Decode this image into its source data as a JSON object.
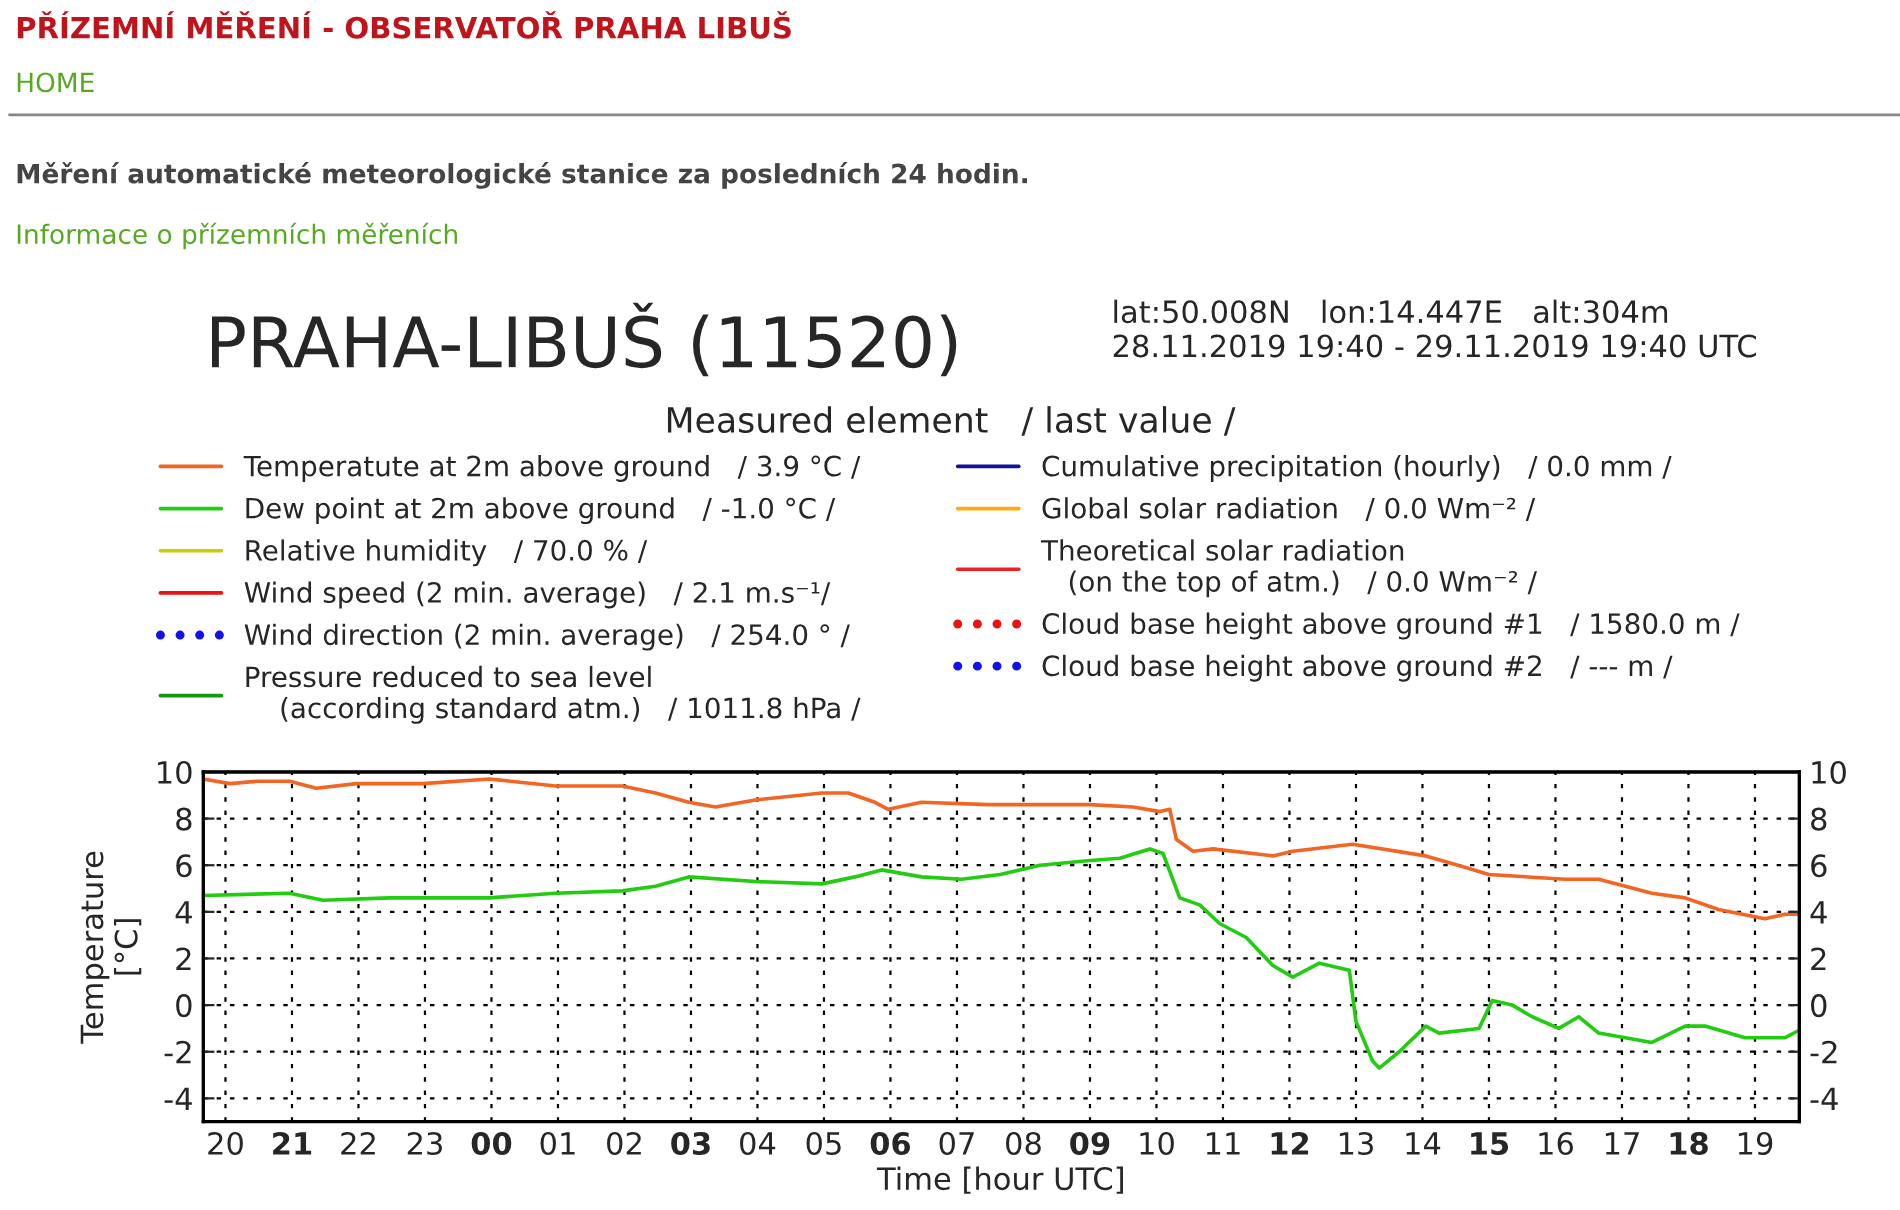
{
  "chart_data": {
    "type": "line",
    "title": "PRAHA-LIBUŠ (11520)",
    "subtitle": "lat:50.008N   lon:14.447E   alt:304m\n28.11.2019 19:40 - 29.11.2019 19:40 UTC",
    "annotations": [
      "PŘÍZEMNÍ MĚŘENÍ - OBSERVATOŘ PRAHA LIBUŠ",
      "HOME",
      "Měření automatické meteorologické stanice za posledních 24 hodin.",
      "Informace o přízemních měřeních"
    ],
    "legend_title": "Measured element   / last value /",
    "xlabel": "Time [hour UTC]",
    "ylabel": "Temperature\n[°C]",
    "xlim": [
      "2019-11-28T19:40",
      "2019-11-29T19:40"
    ],
    "xticks": [
      {
        "value": "2019-11-28T20:00",
        "label": "20"
      },
      {
        "value": "2019-11-28T21:00",
        "label": "21"
      },
      {
        "value": "2019-11-28T22:00",
        "label": "22"
      },
      {
        "value": "2019-11-28T23:00",
        "label": "23"
      },
      {
        "value": "2019-11-29T00:00",
        "label": "00"
      },
      {
        "value": "2019-11-29T01:00",
        "label": "01"
      },
      {
        "value": "2019-11-29T02:00",
        "label": "02"
      },
      {
        "value": "2019-11-29T03:00",
        "label": "03"
      },
      {
        "value": "2019-11-29T04:00",
        "label": "04"
      },
      {
        "value": "2019-11-29T05:00",
        "label": "05"
      },
      {
        "value": "2019-11-29T06:00",
        "label": "06"
      },
      {
        "value": "2019-11-29T07:00",
        "label": "07"
      },
      {
        "value": "2019-11-29T08:00",
        "label": "08"
      },
      {
        "value": "2019-11-29T09:00",
        "label": "09"
      },
      {
        "value": "2019-11-29T10:00",
        "label": "10"
      },
      {
        "value": "2019-11-29T11:00",
        "label": "11"
      },
      {
        "value": "2019-11-29T12:00",
        "label": "12"
      },
      {
        "value": "2019-11-29T13:00",
        "label": "13"
      },
      {
        "value": "2019-11-29T14:00",
        "label": "14"
      },
      {
        "value": "2019-11-29T15:00",
        "label": "15"
      },
      {
        "value": "2019-11-29T16:00",
        "label": "16"
      },
      {
        "value": "2019-11-29T17:00",
        "label": "17"
      },
      {
        "value": "2019-11-29T18:00",
        "label": "18"
      },
      {
        "value": "2019-11-29T19:00",
        "label": "19"
      }
    ],
    "ylim": [
      -5,
      10
    ],
    "yticks": [
      -4,
      -2,
      0,
      2,
      4,
      6,
      8,
      10
    ],
    "y2lim": [
      -5,
      10
    ],
    "y2ticks": [
      -4,
      -2,
      0,
      2,
      4,
      6,
      8,
      10
    ],
    "grid": true,
    "legend": "top",
    "series": [
      {
        "name": "Temperatute at 2m above ground   / 3.9 °C /",
        "color": "#f26522",
        "x": [
          "2019-11-28T19:40",
          "2019-11-28T20:04",
          "2019-11-28T20:28",
          "2019-11-28T20:58",
          "2019-11-28T21:22",
          "2019-11-28T21:58",
          "2019-11-28T22:58",
          "2019-11-28T23:58",
          "2019-11-29T00:58",
          "2019-11-29T01:58",
          "2019-11-29T02:28",
          "2019-11-29T02:58",
          "2019-11-29T03:22",
          "2019-11-29T03:58",
          "2019-11-29T04:58",
          "2019-11-29T05:22",
          "2019-11-29T05:46",
          "2019-11-29T05:58",
          "2019-11-29T06:28",
          "2019-11-29T07:28",
          "2019-11-29T08:04",
          "2019-11-29T09:00",
          "2019-11-29T09:39",
          "2019-11-29T10:03",
          "2019-11-29T10:12",
          "2019-11-29T10:18",
          "2019-11-29T10:33",
          "2019-11-29T10:51",
          "2019-11-29T11:45",
          "2019-11-29T12:03",
          "2019-11-29T12:57",
          "2019-11-29T14:03",
          "2019-11-29T14:39",
          "2019-11-29T15:00",
          "2019-11-29T16:09",
          "2019-11-29T16:39",
          "2019-11-29T17:27",
          "2019-11-29T17:57",
          "2019-11-29T18:27",
          "2019-11-29T19:09",
          "2019-11-29T19:27",
          "2019-11-29T19:39"
        ],
        "values": [
          9.7,
          9.5,
          9.6,
          9.6,
          9.3,
          9.5,
          9.5,
          9.7,
          9.4,
          9.4,
          9.1,
          8.7,
          8.5,
          8.8,
          9.1,
          9.1,
          8.7,
          8.4,
          8.7,
          8.6,
          8.6,
          8.6,
          8.5,
          8.3,
          8.4,
          7.1,
          6.6,
          6.7,
          6.4,
          6.6,
          6.9,
          6.4,
          5.9,
          5.6,
          5.4,
          5.4,
          4.8,
          4.6,
          4.1,
          3.7,
          3.9,
          3.9
        ]
      },
      {
        "name": "Dew point at 2m above ground   / -1.0 °C /",
        "color": "#22cc11",
        "x": [
          "2019-11-28T19:40",
          "2019-11-28T20:58",
          "2019-11-28T21:28",
          "2019-11-28T22:28",
          "2019-11-28T23:58",
          "2019-11-29T00:58",
          "2019-11-29T01:58",
          "2019-11-29T02:28",
          "2019-11-29T02:58",
          "2019-11-29T03:58",
          "2019-11-29T04:58",
          "2019-11-29T05:28",
          "2019-11-29T05:52",
          "2019-11-29T06:28",
          "2019-11-29T07:04",
          "2019-11-29T07:39",
          "2019-11-29T08:15",
          "2019-11-29T09:00",
          "2019-11-29T09:27",
          "2019-11-29T09:54",
          "2019-11-29T10:06",
          "2019-11-29T10:21",
          "2019-11-29T10:39",
          "2019-11-29T10:57",
          "2019-11-29T11:21",
          "2019-11-29T11:45",
          "2019-11-29T12:03",
          "2019-11-29T12:27",
          "2019-11-29T12:54",
          "2019-11-29T13:00",
          "2019-11-29T13:15",
          "2019-11-29T13:21",
          "2019-11-29T13:39",
          "2019-11-29T14:03",
          "2019-11-29T14:15",
          "2019-11-29T14:51",
          "2019-11-29T15:03",
          "2019-11-29T15:21",
          "2019-11-29T15:39",
          "2019-11-29T16:03",
          "2019-11-29T16:21",
          "2019-11-29T16:39",
          "2019-11-29T17:27",
          "2019-11-29T17:57",
          "2019-11-29T18:15",
          "2019-11-29T18:51",
          "2019-11-29T19:27",
          "2019-11-29T19:39"
        ],
        "values": [
          4.7,
          4.8,
          4.5,
          4.6,
          4.6,
          4.8,
          4.9,
          5.1,
          5.5,
          5.3,
          5.2,
          5.5,
          5.8,
          5.5,
          5.4,
          5.6,
          6.0,
          6.2,
          6.3,
          6.7,
          6.5,
          4.6,
          4.3,
          3.5,
          2.9,
          1.7,
          1.2,
          1.8,
          1.5,
          -0.7,
          -2.4,
          -2.7,
          -2.0,
          -0.9,
          -1.2,
          -1.0,
          0.2,
          0.0,
          -0.5,
          -1.0,
          -0.5,
          -1.2,
          -1.6,
          -0.9,
          -0.9,
          -1.4,
          -1.4,
          -1.1
        ]
      },
      {
        "name": "Relative humidity   / 70.0 % /",
        "color": "#cccc00"
      },
      {
        "name": "Wind speed (2 min. average)   / 2.1 m.s⁻¹/",
        "color": "#ee1111"
      },
      {
        "name": "Wind direction (2 min. average)   / 254.0 ° /",
        "color": "#1111ee",
        "marker": "circle"
      },
      {
        "name": "Pressure reduced to sea level\n    (according standard atm.)   / 1011.8 hPa /",
        "color": "#119911"
      },
      {
        "name": "Cumulative precipitation (hourly)   / 0.0 mm /",
        "color": "#111199"
      },
      {
        "name": "Global solar radiation   / 0.0 Wm⁻² /",
        "color": "#ffaa11"
      },
      {
        "name": "Theoretical solar radiation\n   (on the top of atm.)   / 0.0 Wm⁻² /",
        "color": "#ee2222"
      },
      {
        "name": "Cloud base height above ground #1   / 1580.0 m /",
        "color": "#ee1111",
        "marker": "circle"
      },
      {
        "name": "Cloud base height above ground #2   / --- m /",
        "color": "#1111ee",
        "marker": "circle"
      }
    ]
  }
}
